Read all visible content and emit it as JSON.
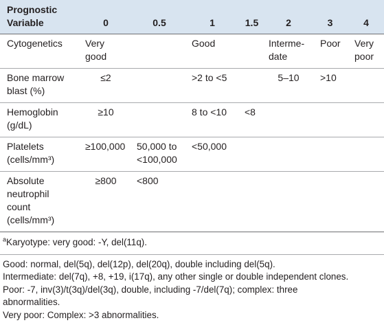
{
  "table": {
    "header": [
      "Prognostic\nVariable",
      "0",
      "0.5",
      "1",
      "1.5",
      "2",
      "3",
      "4"
    ],
    "rows": [
      [
        "Cytogenetics",
        "Very\ngood",
        null,
        "Good",
        null,
        "Interme-\ndate",
        "Poor",
        "Very\npoor"
      ],
      [
        "Bone marrow\nblast (%)",
        "≤2",
        null,
        ">2 to <5",
        null,
        "5–10",
        ">10",
        null
      ],
      [
        "Hemoglobin\n(g/dL)",
        "≥10",
        null,
        "8 to <10",
        "<8",
        null,
        null,
        null
      ],
      [
        "Platelets\n(cells/mm³)",
        "≥100,000",
        "50,000 to\n<100,000",
        "<50,000",
        null,
        null,
        null,
        null
      ],
      [
        "Absolute\nneutrophil\ncount\n(cells/mm³)",
        "≥800",
        "<800",
        null,
        null,
        null,
        null,
        null
      ]
    ]
  },
  "footnotes": [
    {
      "mark": "a",
      "text": "Karyotype: very good: -Y, del(11q)."
    },
    {
      "text": "Good: normal, del(5q), del(12p), del(20q), double including del(5q)."
    },
    {
      "text": "Intermediate: del(7q), +8, +19, i(17q), any other single or double independent clones."
    },
    {
      "text": "Poor: -7, inv(3)/t(3q)/del(3q), double, including -7/del(7q); complex: three\nabnormalities."
    },
    {
      "text": "Very poor: Complex: >3 abnormalities."
    }
  ]
}
